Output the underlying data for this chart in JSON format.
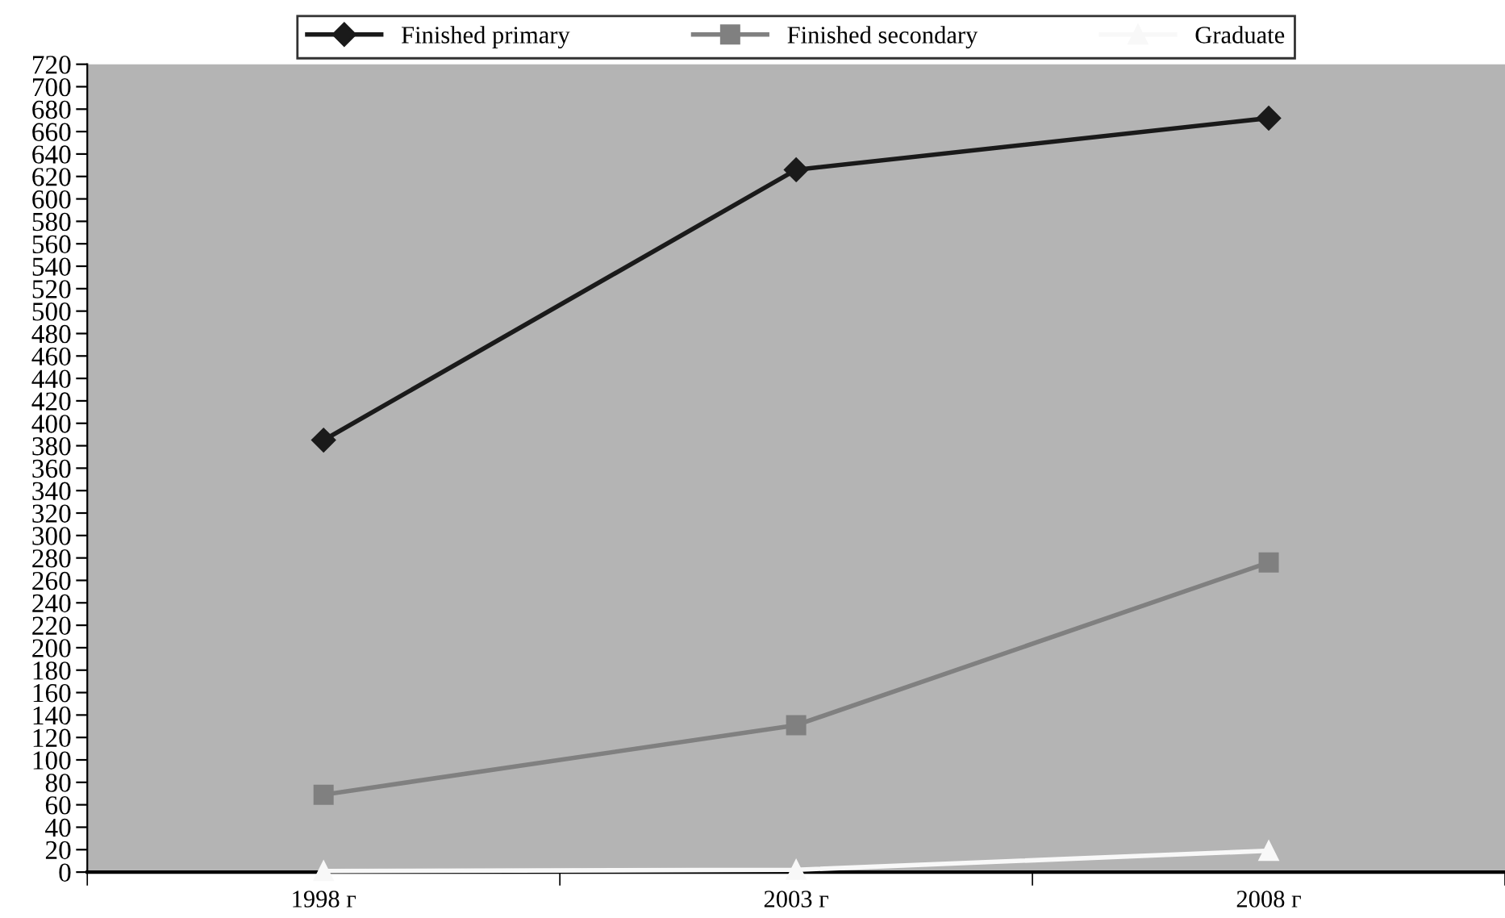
{
  "chart_data": {
    "type": "line",
    "categories": [
      "1998 г",
      "2003 г",
      "2008 г"
    ],
    "series": [
      {
        "name": "Finished primary",
        "color": "#1a1a1a",
        "marker": "diamond",
        "values": [
          385,
          626,
          672
        ]
      },
      {
        "name": "Finished secondary",
        "color": "#808080",
        "marker": "square",
        "values": [
          69,
          131,
          276
        ]
      },
      {
        "name": "Graduate",
        "color": "#f8f8f8",
        "marker": "triangle",
        "values": [
          1,
          2,
          19
        ]
      }
    ],
    "ylim": [
      0,
      720
    ],
    "yticks": [
      0,
      20,
      40,
      60,
      80,
      100,
      120,
      140,
      160,
      180,
      200,
      220,
      240,
      260,
      280,
      300,
      320,
      340,
      360,
      380,
      400,
      420,
      440,
      460,
      480,
      500,
      520,
      540,
      560,
      580,
      600,
      620,
      640,
      660,
      680,
      700,
      720
    ],
    "grid": false,
    "legend": "top",
    "line_style": "solid"
  }
}
